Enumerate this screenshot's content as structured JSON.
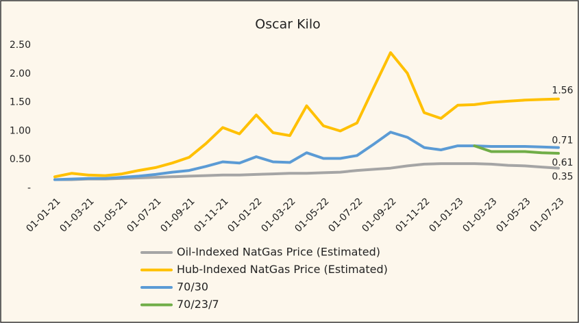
{
  "chart_data": {
    "type": "line",
    "title": "Oscar Kilo",
    "categories": [
      "01-01-21",
      null,
      "01-03-21",
      null,
      "01-05-21",
      null,
      "01-07-21",
      null,
      "01-09-21",
      null,
      "01-11-21",
      null,
      "01-01-22",
      null,
      "01-03-22",
      null,
      "01-05-22",
      null,
      "01-07-22",
      null,
      "01-09-22",
      null,
      "01-11-22",
      null,
      "01-01-23",
      null,
      "01-03-23",
      null,
      "01-05-23",
      null,
      "01-07-23"
    ],
    "series": [
      {
        "name": "Oil-Indexed NatGas Price (Estimated)",
        "color": "#a5a5a5",
        "values": [
          0.15,
          0.15,
          0.16,
          0.16,
          0.17,
          0.18,
          0.19,
          0.2,
          0.21,
          0.22,
          0.23,
          0.23,
          0.24,
          0.25,
          0.26,
          0.26,
          0.27,
          0.28,
          0.31,
          0.33,
          0.35,
          0.39,
          0.42,
          0.43,
          0.43,
          0.43,
          0.42,
          0.4,
          0.39,
          0.37,
          0.35
        ]
      },
      {
        "name": "Hub-Indexed NatGas Price (Estimated)",
        "color": "#ffc000",
        "values": [
          0.2,
          0.26,
          0.23,
          0.22,
          0.25,
          0.31,
          0.36,
          0.44,
          0.54,
          0.78,
          1.06,
          0.95,
          1.28,
          0.97,
          0.92,
          1.44,
          1.09,
          1.0,
          1.14,
          1.76,
          2.37,
          2.01,
          1.32,
          1.22,
          1.45,
          1.46,
          1.5,
          1.52,
          1.54,
          1.55,
          1.56
        ]
      },
      {
        "name": "70/30",
        "color": "#5b9bd5",
        "values": [
          0.15,
          0.16,
          0.17,
          0.17,
          0.19,
          0.21,
          0.24,
          0.28,
          0.31,
          0.38,
          0.46,
          0.44,
          0.55,
          0.46,
          0.45,
          0.62,
          0.52,
          0.52,
          0.57,
          0.77,
          0.98,
          0.89,
          0.71,
          0.67,
          0.74,
          0.74,
          0.73,
          0.73,
          0.73,
          0.72,
          0.71
        ]
      },
      {
        "name": "70/23/7",
        "color": "#70ad47",
        "values": [
          null,
          null,
          null,
          null,
          null,
          null,
          null,
          null,
          null,
          null,
          null,
          null,
          null,
          null,
          null,
          null,
          null,
          null,
          null,
          null,
          null,
          null,
          null,
          null,
          null,
          0.74,
          0.64,
          0.64,
          0.64,
          0.62,
          0.61
        ]
      }
    ],
    "ylim": [
      0,
      2.5
    ],
    "yticks": [
      {
        "value": 0,
        "label": "-"
      },
      {
        "value": 0.5,
        "label": "0.50"
      },
      {
        "value": 1,
        "label": "1.00"
      },
      {
        "value": 1.5,
        "label": "1.50"
      },
      {
        "value": 2,
        "label": "2.00"
      },
      {
        "value": 2.5,
        "label": "2.50"
      }
    ],
    "grid": false
  }
}
